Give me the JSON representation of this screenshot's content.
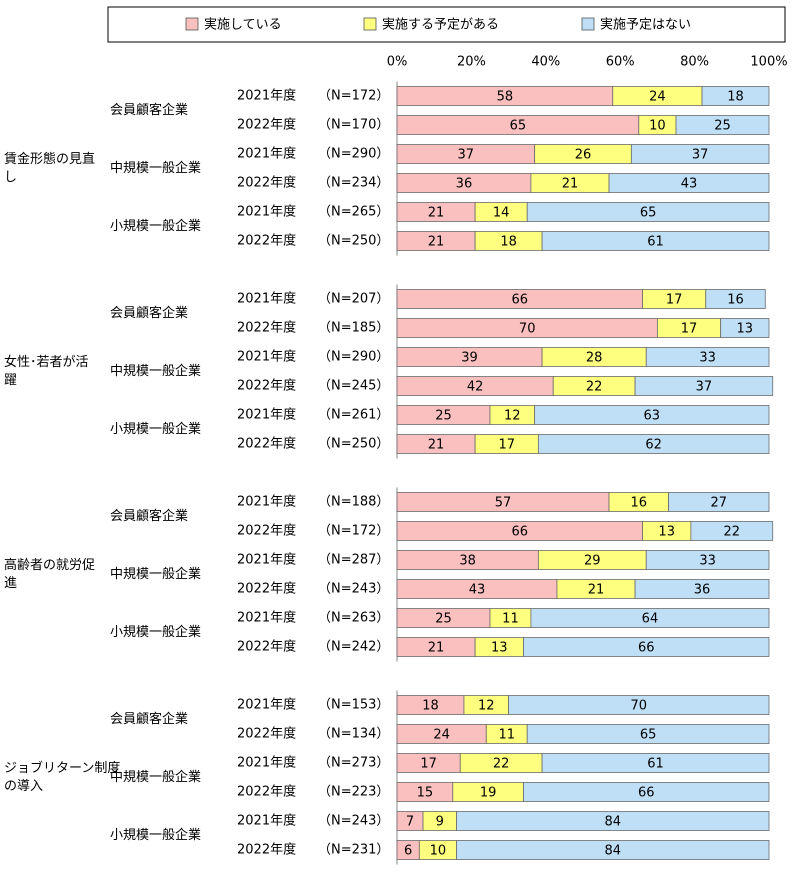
{
  "chart_data": {
    "type": "bar",
    "orientation": "horizontal",
    "stacked": true,
    "percent_stacked": true,
    "xlim": [
      0,
      100
    ],
    "x_ticks": [
      "0%",
      "20%",
      "40%",
      "60%",
      "80%",
      "100%"
    ],
    "legend": {
      "position": "top",
      "items": [
        {
          "label": "実施している",
          "color": "#FABFBF"
        },
        {
          "label": "実施する予定がある",
          "color": "#FFFF7F"
        },
        {
          "label": "実施予定はない",
          "color": "#BFDFF7"
        }
      ]
    },
    "series_colors": [
      "#FABFBF",
      "#FFFF7F",
      "#BFDFF7"
    ],
    "groups": [
      {
        "label": "賃金形態の見直し",
        "label_lines": [
          "賃金形態の見直",
          "し"
        ],
        "subgroups": [
          {
            "label": "会員顧客企業",
            "rows": [
              {
                "year": "2021年度",
                "n": "（N=172）",
                "values": [
                  58,
                  24,
                  18
                ]
              },
              {
                "year": "2022年度",
                "n": "（N=170）",
                "values": [
                  65,
                  10,
                  25
                ]
              }
            ]
          },
          {
            "label": "中規模一般企業",
            "rows": [
              {
                "year": "2021年度",
                "n": "（N=290）",
                "values": [
                  37,
                  26,
                  37
                ]
              },
              {
                "year": "2022年度",
                "n": "（N=234）",
                "values": [
                  36,
                  21,
                  43
                ]
              }
            ]
          },
          {
            "label": "小規模一般企業",
            "rows": [
              {
                "year": "2021年度",
                "n": "（N=265）",
                "values": [
                  21,
                  14,
                  65
                ]
              },
              {
                "year": "2022年度",
                "n": "（N=250）",
                "values": [
                  21,
                  18,
                  61
                ]
              }
            ]
          }
        ]
      },
      {
        "label": "女性・若者が活躍",
        "label_lines": [
          "女性･若者が活",
          "躍"
        ],
        "subgroups": [
          {
            "label": "会員顧客企業",
            "rows": [
              {
                "year": "2021年度",
                "n": "（N=207）",
                "values": [
                  66,
                  17,
                  16
                ]
              },
              {
                "year": "2022年度",
                "n": "（N=185）",
                "values": [
                  70,
                  17,
                  13
                ]
              }
            ]
          },
          {
            "label": "中規模一般企業",
            "rows": [
              {
                "year": "2021年度",
                "n": "（N=290）",
                "values": [
                  39,
                  28,
                  33
                ]
              },
              {
                "year": "2022年度",
                "n": "（N=245）",
                "values": [
                  42,
                  22,
                  37
                ]
              }
            ]
          },
          {
            "label": "小規模一般企業",
            "rows": [
              {
                "year": "2021年度",
                "n": "（N=261）",
                "values": [
                  25,
                  12,
                  63
                ]
              },
              {
                "year": "2022年度",
                "n": "（N=250）",
                "values": [
                  21,
                  17,
                  62
                ]
              }
            ]
          }
        ]
      },
      {
        "label": "高齢者の就労促進",
        "label_lines": [
          "高齢者の就労促",
          "進"
        ],
        "subgroups": [
          {
            "label": "会員顧客企業",
            "rows": [
              {
                "year": "2021年度",
                "n": "（N=188）",
                "values": [
                  57,
                  16,
                  27
                ]
              },
              {
                "year": "2022年度",
                "n": "（N=172）",
                "values": [
                  66,
                  13,
                  22
                ]
              }
            ]
          },
          {
            "label": "中規模一般企業",
            "rows": [
              {
                "year": "2021年度",
                "n": "（N=287）",
                "values": [
                  38,
                  29,
                  33
                ]
              },
              {
                "year": "2022年度",
                "n": "（N=243）",
                "values": [
                  43,
                  21,
                  36
                ]
              }
            ]
          },
          {
            "label": "小規模一般企業",
            "rows": [
              {
                "year": "2021年度",
                "n": "（N=263）",
                "values": [
                  25,
                  11,
                  64
                ]
              },
              {
                "year": "2022年度",
                "n": "（N=242）",
                "values": [
                  21,
                  13,
                  66
                ]
              }
            ]
          }
        ]
      },
      {
        "label": "ジョブリターン制度の導入",
        "label_lines": [
          "ジョブリターン制度",
          "の導入"
        ],
        "subgroups": [
          {
            "label": "会員顧客企業",
            "rows": [
              {
                "year": "2021年度",
                "n": "（N=153）",
                "values": [
                  18,
                  12,
                  70
                ]
              },
              {
                "year": "2022年度",
                "n": "（N=134）",
                "values": [
                  24,
                  11,
                  65
                ]
              }
            ]
          },
          {
            "label": "中規模一般企業",
            "rows": [
              {
                "year": "2021年度",
                "n": "（N=273）",
                "values": [
                  17,
                  22,
                  61
                ]
              },
              {
                "year": "2022年度",
                "n": "（N=223）",
                "values": [
                  15,
                  19,
                  66
                ]
              }
            ]
          },
          {
            "label": "小規模一般企業",
            "rows": [
              {
                "year": "2021年度",
                "n": "（N=243）",
                "values": [
                  7,
                  9,
                  84
                ]
              },
              {
                "year": "2022年度",
                "n": "（N=231）",
                "values": [
                  6,
                  10,
                  84
                ]
              }
            ]
          }
        ]
      }
    ]
  }
}
